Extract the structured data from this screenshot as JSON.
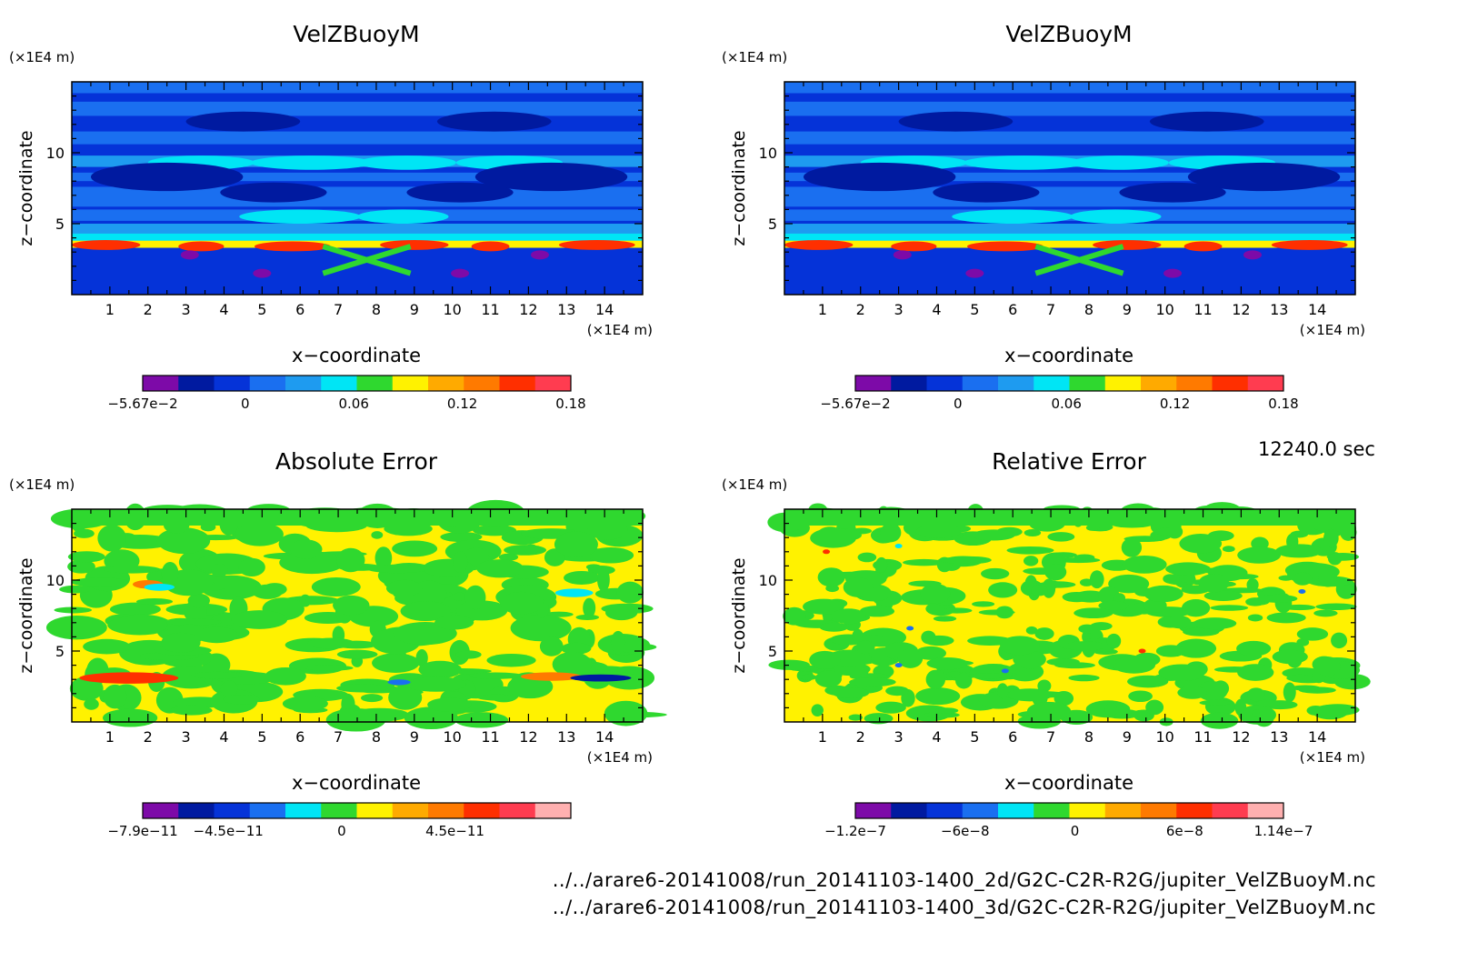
{
  "time_label": "12240.0 sec",
  "files": [
    "../../arare6-20141008/run_20141103-1400_2d/G2C-C2R-R2G/jupiter_VelZBuoyM.nc",
    "../../arare6-20141008/run_20141103-1400_3d/G2C-C2R-R2G/jupiter_VelZBuoyM.nc"
  ],
  "chart_data": [
    {
      "type": "heatmap",
      "title": "VelZBuoyM",
      "xlabel": "x−coordinate",
      "ylabel": "z−coordinate",
      "x_unit": "(×1E4 m)",
      "y_unit": "(×1E4 m)",
      "xlim": [
        0,
        15
      ],
      "ylim": [
        0,
        15
      ],
      "x_ticks": [
        1,
        2,
        3,
        4,
        5,
        6,
        7,
        8,
        9,
        10,
        11,
        12,
        13,
        14
      ],
      "y_ticks": [
        5,
        10
      ],
      "colorbar_labels": [
        {
          "text": "−5.67e−2",
          "value": -0.0567
        },
        {
          "text": "0",
          "value": 0
        },
        {
          "text": "0.06",
          "value": 0.06
        },
        {
          "text": "0.12",
          "value": 0.12
        },
        {
          "text": "0.18",
          "value": 0.18
        }
      ],
      "colorbar_colors": [
        "#7d0aa8",
        "#001aa0",
        "#0533d8",
        "#1a6ff0",
        "#1e9bf0",
        "#00e5f5",
        "#2fd82f",
        "#fff200",
        "#ffaa00",
        "#ff7a00",
        "#ff2f00",
        "#ff3c50"
      ]
    },
    {
      "type": "heatmap",
      "title": "VelZBuoyM",
      "xlabel": "x−coordinate",
      "ylabel": "z−coordinate",
      "x_unit": "(×1E4 m)",
      "y_unit": "(×1E4 m)",
      "xlim": [
        0,
        15
      ],
      "ylim": [
        0,
        15
      ],
      "x_ticks": [
        1,
        2,
        3,
        4,
        5,
        6,
        7,
        8,
        9,
        10,
        11,
        12,
        13,
        14
      ],
      "y_ticks": [
        5,
        10
      ],
      "colorbar_labels": [
        {
          "text": "−5.67e−2",
          "value": -0.0567
        },
        {
          "text": "0",
          "value": 0
        },
        {
          "text": "0.06",
          "value": 0.06
        },
        {
          "text": "0.12",
          "value": 0.12
        },
        {
          "text": "0.18",
          "value": 0.18
        }
      ],
      "colorbar_colors": [
        "#7d0aa8",
        "#001aa0",
        "#0533d8",
        "#1a6ff0",
        "#1e9bf0",
        "#00e5f5",
        "#2fd82f",
        "#fff200",
        "#ffaa00",
        "#ff7a00",
        "#ff2f00",
        "#ff3c50"
      ]
    },
    {
      "type": "heatmap",
      "title": "Absolute Error",
      "xlabel": "x−coordinate",
      "ylabel": "z−coordinate",
      "x_unit": "(×1E4 m)",
      "y_unit": "(×1E4 m)",
      "xlim": [
        0,
        15
      ],
      "ylim": [
        0,
        15
      ],
      "x_ticks": [
        1,
        2,
        3,
        4,
        5,
        6,
        7,
        8,
        9,
        10,
        11,
        12,
        13,
        14
      ],
      "y_ticks": [
        5,
        10
      ],
      "colorbar_labels": [
        {
          "text": "−7.9e−11",
          "value": -7.9e-11
        },
        {
          "text": "−4.5e−11",
          "value": -4.5e-11
        },
        {
          "text": "0",
          "value": 0
        },
        {
          "text": "4.5e−11",
          "value": 4.5e-11
        }
      ],
      "colorbar_colors": [
        "#7d0aa8",
        "#001aa0",
        "#0533d8",
        "#1a6ff0",
        "#00e5f5",
        "#2fd82f",
        "#fff200",
        "#ffaa00",
        "#ff7a00",
        "#ff2f00",
        "#ff3c50",
        "#ffb0b0"
      ]
    },
    {
      "type": "heatmap",
      "title": "Relative Error",
      "xlabel": "x−coordinate",
      "ylabel": "z−coordinate",
      "x_unit": "(×1E4 m)",
      "y_unit": "(×1E4 m)",
      "xlim": [
        0,
        15
      ],
      "ylim": [
        0,
        15
      ],
      "x_ticks": [
        1,
        2,
        3,
        4,
        5,
        6,
        7,
        8,
        9,
        10,
        11,
        12,
        13,
        14
      ],
      "y_ticks": [
        5,
        10
      ],
      "colorbar_labels": [
        {
          "text": "−1.2e−7",
          "value": -1.2e-07
        },
        {
          "text": "−6e−8",
          "value": -6e-08
        },
        {
          "text": "0",
          "value": 0
        },
        {
          "text": "6e−8",
          "value": 6e-08
        },
        {
          "text": "1.14e−7",
          "value": 1.14e-07
        }
      ],
      "colorbar_colors": [
        "#7d0aa8",
        "#001aa0",
        "#0533d8",
        "#1a6ff0",
        "#00e5f5",
        "#2fd82f",
        "#fff200",
        "#ffaa00",
        "#ff7a00",
        "#ff2f00",
        "#ff3c50",
        "#ffb0b0"
      ]
    }
  ]
}
